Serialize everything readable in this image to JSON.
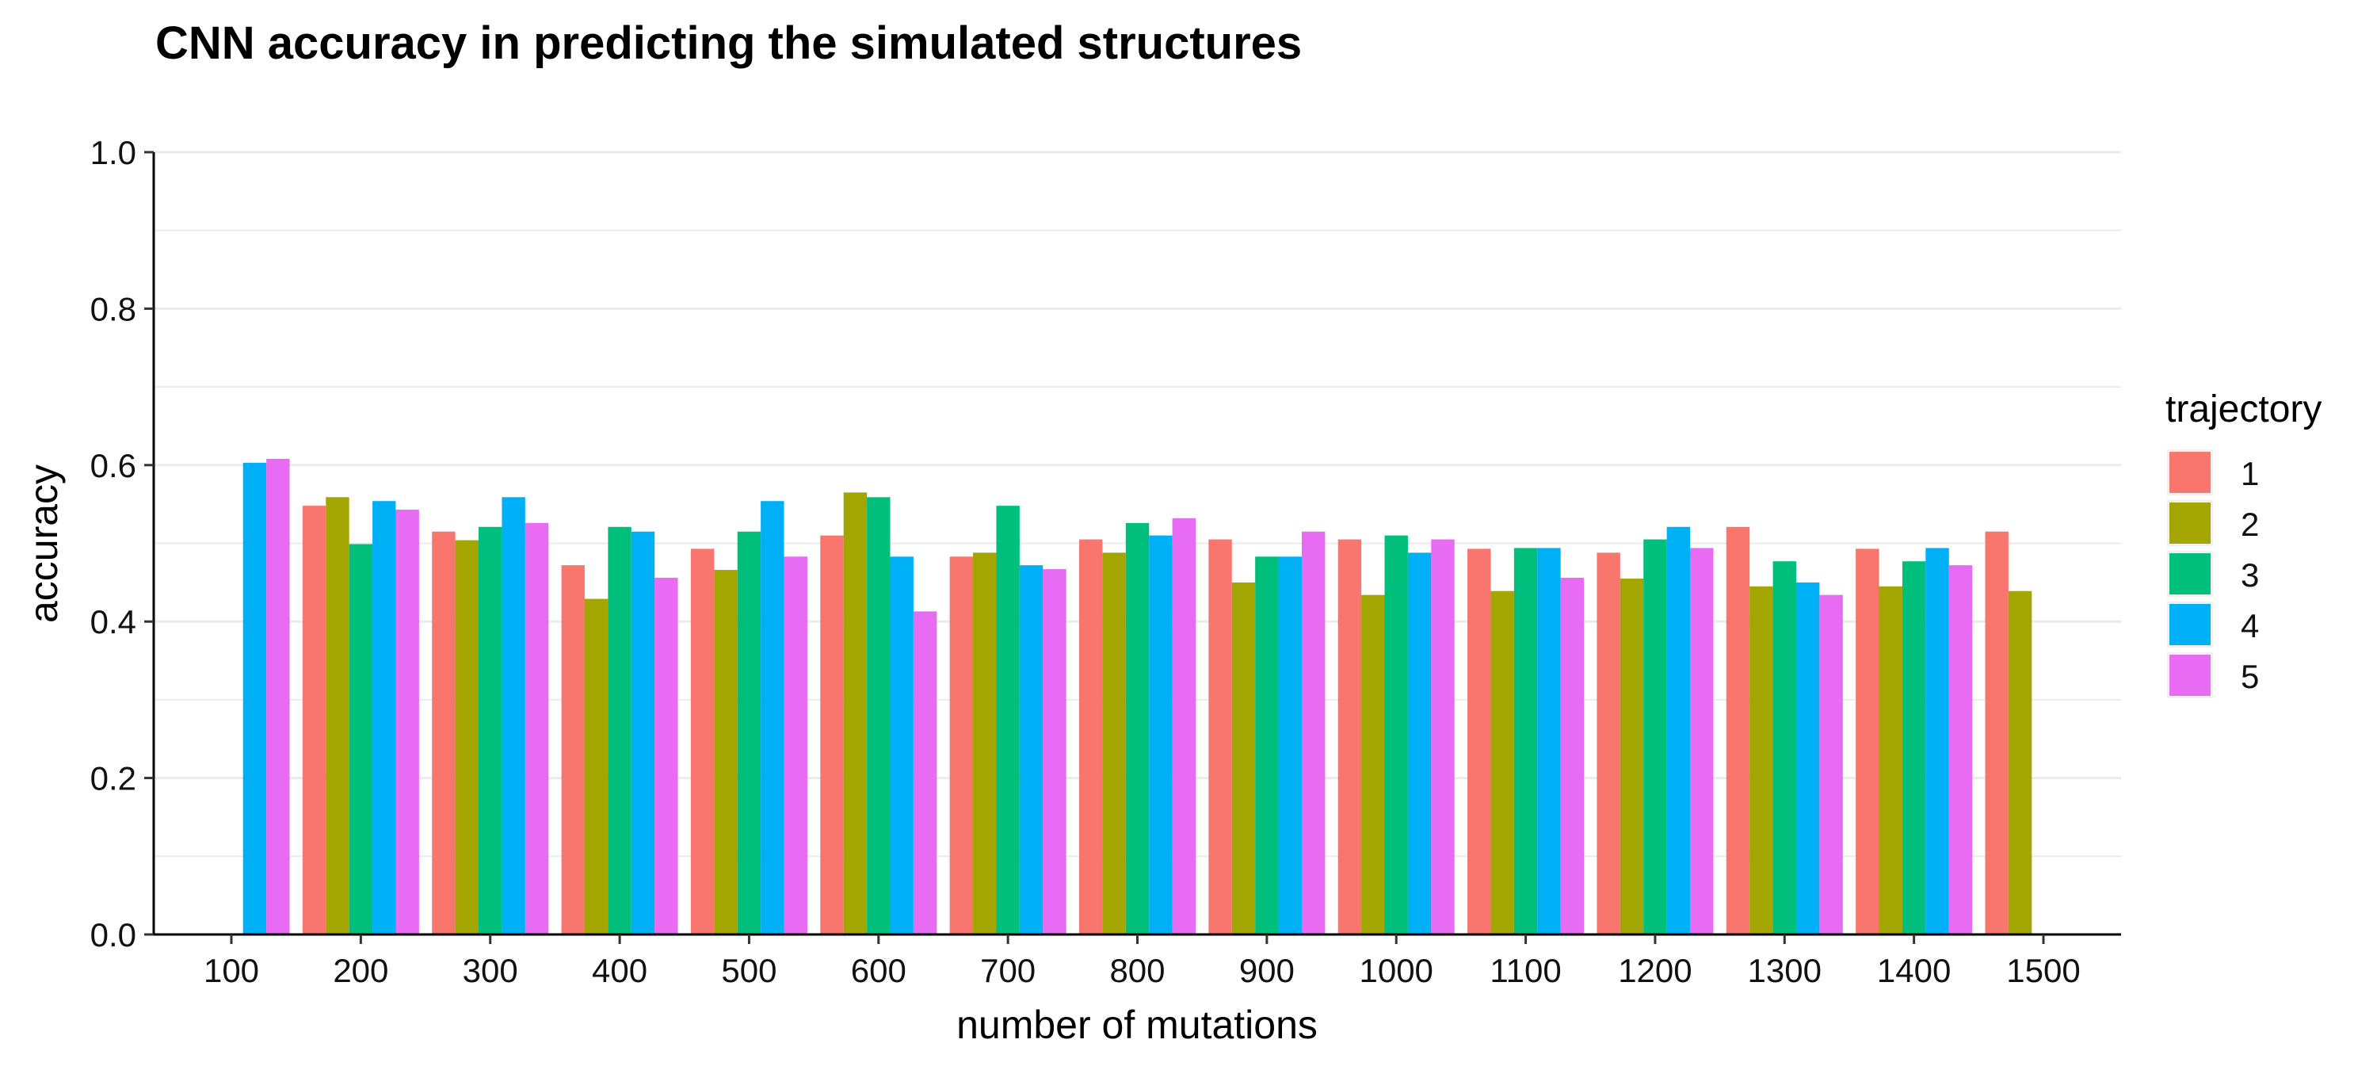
{
  "chart_data": {
    "type": "bar",
    "title": "CNN accuracy in predicting the simulated structures",
    "xlabel": "number of mutations",
    "ylabel": "accuracy",
    "ylim": [
      0,
      1
    ],
    "yticks": [
      "0.0",
      "0.2",
      "0.4",
      "0.6",
      "0.8",
      "1.0"
    ],
    "grid": true,
    "legend_title": "trajectory",
    "legend_position": "right",
    "categories": [
      "100",
      "200",
      "300",
      "400",
      "500",
      "600",
      "700",
      "800",
      "900",
      "1000",
      "1100",
      "1200",
      "1300",
      "1400",
      "1500"
    ],
    "series": [
      {
        "name": "1",
        "color": "#F8766D",
        "values": [
          null,
          0.548,
          0.515,
          0.472,
          0.493,
          0.51,
          0.483,
          0.505,
          0.505,
          0.505,
          0.493,
          0.488,
          0.521,
          0.493,
          0.515
        ]
      },
      {
        "name": "2",
        "color": "#A3A500",
        "values": [
          null,
          0.559,
          0.504,
          0.429,
          0.466,
          0.565,
          0.488,
          0.488,
          0.45,
          0.434,
          0.439,
          0.455,
          0.445,
          0.445,
          0.439
        ]
      },
      {
        "name": "3",
        "color": "#00BF7D",
        "values": [
          null,
          0.499,
          0.521,
          0.521,
          0.515,
          0.559,
          0.548,
          0.526,
          0.483,
          0.51,
          0.494,
          0.505,
          0.477,
          0.477,
          null
        ]
      },
      {
        "name": "4",
        "color": "#00B0F6",
        "values": [
          0.603,
          0.554,
          0.559,
          0.515,
          0.554,
          0.483,
          0.472,
          0.51,
          0.483,
          0.488,
          0.494,
          0.521,
          0.45,
          0.494,
          null
        ]
      },
      {
        "name": "5",
        "color": "#E76BF3",
        "values": [
          0.608,
          0.543,
          0.526,
          0.456,
          0.483,
          0.413,
          0.467,
          0.532,
          0.515,
          0.505,
          0.456,
          0.494,
          0.434,
          0.472,
          null
        ]
      }
    ]
  }
}
